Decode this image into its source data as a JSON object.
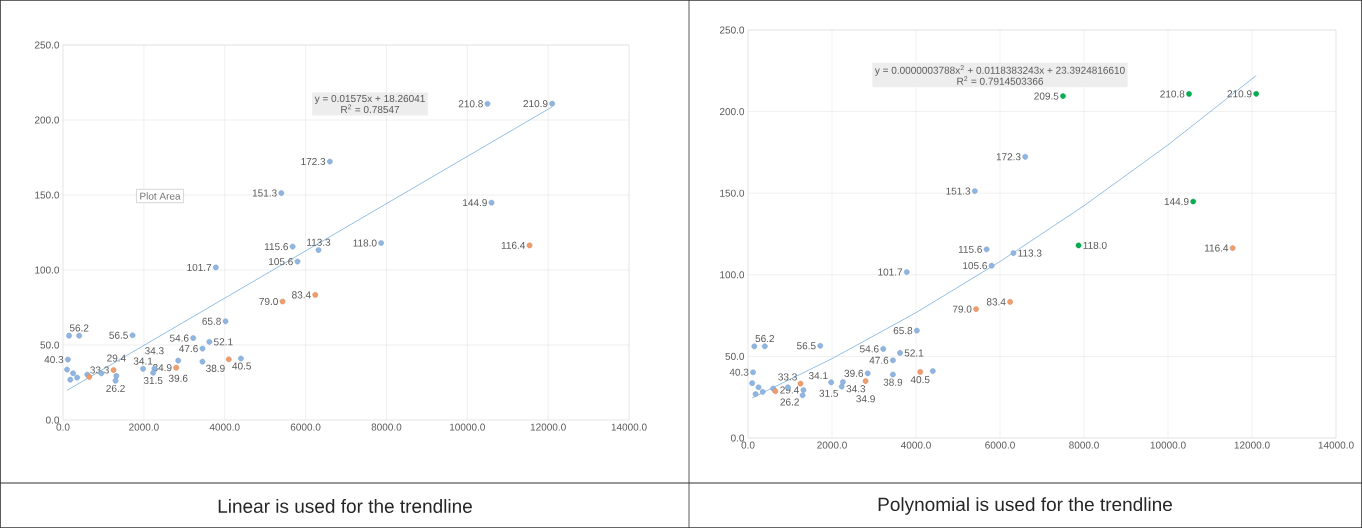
{
  "chart_data": [
    {
      "type": "scatter",
      "xlim": [
        0,
        14000
      ],
      "ylim": [
        0,
        250
      ],
      "xticks": [
        {
          "value": 0,
          "label": "0.0"
        },
        {
          "value": 2000,
          "label": "2000.0"
        },
        {
          "value": 4000,
          "label": "4000.0"
        },
        {
          "value": 6000,
          "label": "6000.0"
        },
        {
          "value": 8000,
          "label": "8000.0"
        },
        {
          "value": 10000,
          "label": "10000.0"
        },
        {
          "value": 12000,
          "label": "12000.0"
        },
        {
          "value": 14000,
          "label": "14000.0"
        }
      ],
      "yticks": [
        {
          "value": 0,
          "label": "0.0"
        },
        {
          "value": 50,
          "label": "50.0"
        },
        {
          "value": 100,
          "label": "100.0"
        },
        {
          "value": 150,
          "label": "150.0"
        },
        {
          "value": 200,
          "label": "200.0"
        },
        {
          "value": 250,
          "label": "250.0"
        }
      ],
      "grid": true,
      "marker": "circle",
      "annotations": [
        "y = 0.01575x + 18.26041",
        "R$^{2}$ = 0.78547",
        "Linear is used for the trendline",
        "Plot Area"
      ],
      "series": [
        {
          "type": "scatter",
          "color": "#8fb6e3",
          "x": [
            10500,
            12100,
            6600,
            5400,
            10600,
            7870,
            5680,
            6320,
            5800,
            3780,
            4020,
            1720,
            150,
            400,
            3220,
            3620,
            3450,
            120,
            4400,
            2850,
            3450,
            1980,
            2260,
            2230,
            1300,
            1320,
            100,
            180,
            250,
            350,
            600,
            950
          ],
          "values": [
            210.8,
            210.9,
            172.3,
            151.3,
            144.9,
            118.0,
            115.6,
            113.3,
            105.6,
            101.7,
            65.8,
            56.5,
            56.2,
            56.2,
            54.6,
            52.1,
            47.6,
            40.3,
            41.0,
            39.6,
            38.9,
            34.1,
            34.3,
            31.5,
            26.2,
            29.4,
            33.6,
            26.9,
            31.1,
            28.3,
            30.3,
            31.1
          ],
          "value_labels": [
            "210.8",
            "210.9",
            "172.3",
            "151.3",
            "144.9",
            "118.0",
            "115.6",
            "113.3",
            "105.6",
            "101.7",
            "65.8",
            "56.5",
            null,
            "56.2",
            "54.6",
            "52.1",
            "47.6",
            "40.3",
            null,
            "39.6",
            "38.9",
            "34.1",
            "34.3",
            "31.5",
            "26.2",
            "29.4",
            null,
            null,
            null,
            null,
            null,
            null
          ]
        },
        {
          "type": "scatter",
          "color": "#f39c6b",
          "x": [
            650,
            1250,
            2800,
            4100,
            5430,
            6240,
            11540
          ],
          "values": [
            28.7,
            33.3,
            34.9,
            40.5,
            79.0,
            83.4,
            116.4
          ],
          "value_labels": [
            null,
            "33.3",
            "34.9",
            "40.5",
            "79.0",
            "83.4",
            "116.4"
          ]
        },
        {
          "type": "line",
          "marker": "none",
          "color": "#7aaee0",
          "x": [
            100,
            12100
          ],
          "values": [
            19.8,
            208.8
          ]
        }
      ]
    },
    {
      "type": "scatter",
      "xlim": [
        0,
        14000
      ],
      "ylim": [
        0,
        250
      ],
      "xticks": [
        {
          "value": 0,
          "label": "0.0"
        },
        {
          "value": 2000,
          "label": "2000.0"
        },
        {
          "value": 4000,
          "label": "4000.0"
        },
        {
          "value": 6000,
          "label": "6000.0"
        },
        {
          "value": 8000,
          "label": "8000.0"
        },
        {
          "value": 10000,
          "label": "10000.0"
        },
        {
          "value": 12000,
          "label": "12000.0"
        },
        {
          "value": 14000,
          "label": "14000.0"
        }
      ],
      "yticks": [
        {
          "value": 0,
          "label": "0.0"
        },
        {
          "value": 50,
          "label": "50.0"
        },
        {
          "value": 100,
          "label": "100.0"
        },
        {
          "value": 150,
          "label": "150.0"
        },
        {
          "value": 200,
          "label": "200.0"
        },
        {
          "value": 250,
          "label": "250.0"
        }
      ],
      "grid": true,
      "marker": "circle",
      "annotations": [
        "y = 0.0000003788x$^{2}$ + 0.0118383243x + 23.3924816610",
        "R$^{2}$ = 0.7914503366",
        "Polynomial is used for the trendline"
      ],
      "series": [
        {
          "type": "scatter",
          "color": "#8fb6e3",
          "x": [
            6600,
            5400,
            5680,
            6320,
            5800,
            3780,
            4020,
            1720,
            150,
            400,
            3220,
            3620,
            3450,
            120,
            4400,
            2850,
            3450,
            1980,
            2260,
            2230,
            1300,
            1320,
            100,
            180,
            250,
            350,
            600,
            950
          ],
          "values": [
            172.3,
            151.3,
            115.6,
            113.3,
            105.6,
            101.7,
            65.8,
            56.5,
            56.2,
            56.2,
            54.6,
            52.1,
            47.6,
            40.3,
            41.0,
            39.6,
            38.9,
            34.1,
            34.3,
            31.5,
            26.2,
            29.4,
            33.6,
            26.9,
            31.1,
            28.3,
            30.3,
            31.1
          ],
          "value_labels": [
            "172.3",
            "151.3",
            "115.6",
            "113.3",
            "105.6",
            "101.7",
            "65.8",
            "56.5",
            null,
            "56.2",
            "54.6",
            "52.1",
            "47.6",
            "40.3",
            null,
            "39.6",
            "38.9",
            "34.1",
            "34.3",
            "31.5",
            "26.2",
            "29.4",
            null,
            null,
            null,
            null,
            null,
            null
          ]
        },
        {
          "type": "scatter",
          "color": "#f39c6b",
          "x": [
            650,
            1250,
            2800,
            4100,
            5430,
            6240,
            11540
          ],
          "values": [
            28.7,
            33.3,
            34.9,
            40.5,
            79.0,
            83.4,
            116.4
          ],
          "value_labels": [
            null,
            "33.3",
            "34.9",
            "40.5",
            "79.0",
            "83.4",
            "116.4"
          ]
        },
        {
          "type": "scatter",
          "color": "#00b050",
          "x": [
            7500,
            10500,
            12100,
            10600,
            7870
          ],
          "values": [
            209.5,
            210.8,
            210.9,
            144.9,
            118.0
          ],
          "value_labels": [
            "209.5",
            "210.8",
            "210.9",
            "144.9",
            "118.0"
          ]
        },
        {
          "type": "line",
          "marker": "none",
          "color": "#7aaee0",
          "x": [
            100,
            2000,
            4000,
            6000,
            8000,
            10000,
            12100
          ],
          "values": [
            24.6,
            48.6,
            76.8,
            108.1,
            142.3,
            179.6,
            222.1
          ]
        }
      ]
    }
  ]
}
